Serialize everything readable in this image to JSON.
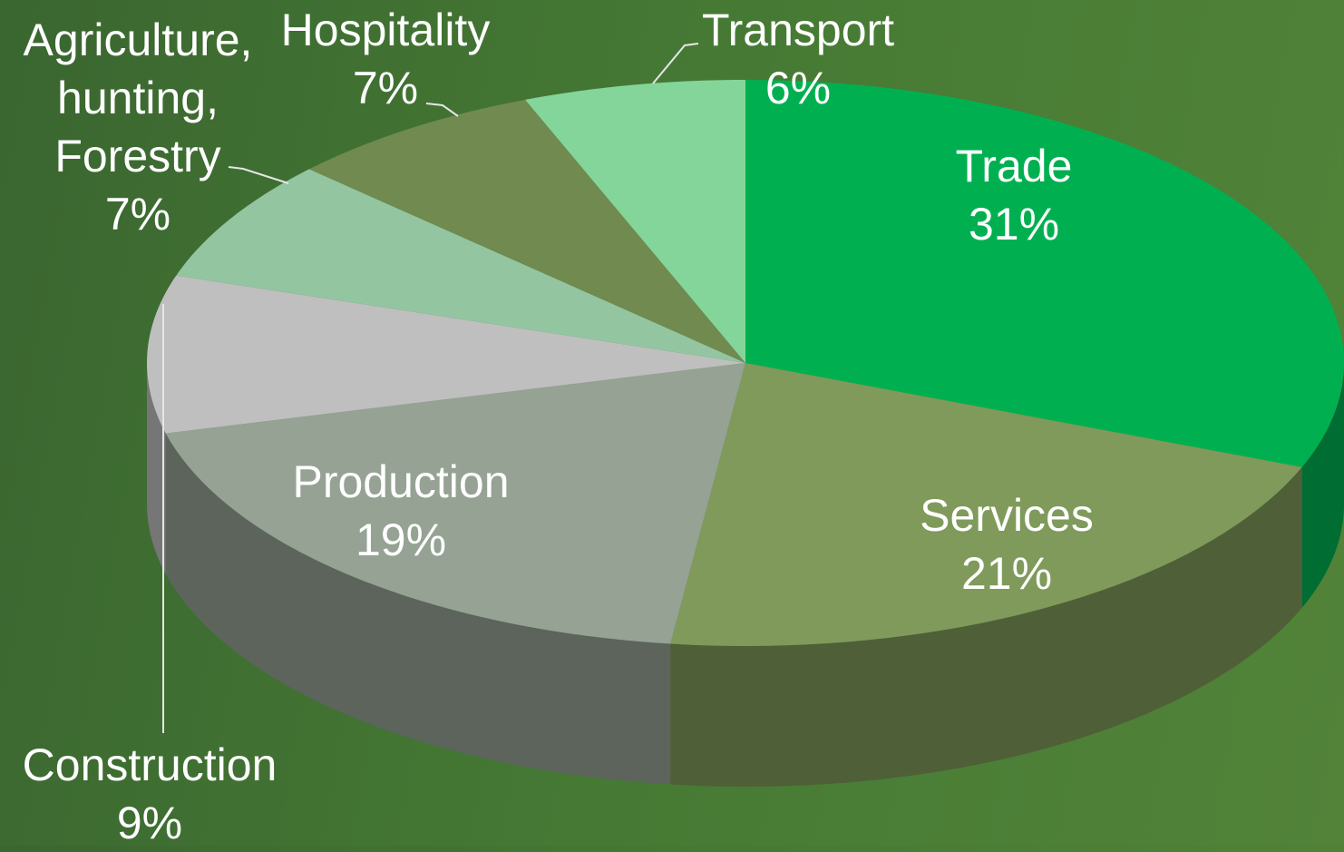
{
  "chart_data": {
    "type": "pie",
    "categories": [
      "Trade",
      "Services",
      "Production",
      "Construction",
      "Agriculture, hunting, Forestry",
      "Hospitality",
      "Transport"
    ],
    "values": [
      31,
      21,
      19,
      9,
      7,
      7,
      6
    ],
    "value_labels": [
      "31%",
      "21%",
      "19%",
      "9%",
      "7%",
      "7%",
      "6%"
    ],
    "colors": [
      "#00b050",
      "#7f9a5a",
      "#95a294",
      "#bfbfbf",
      "#93c5a0",
      "#708a50",
      "#84d59a"
    ]
  }
}
